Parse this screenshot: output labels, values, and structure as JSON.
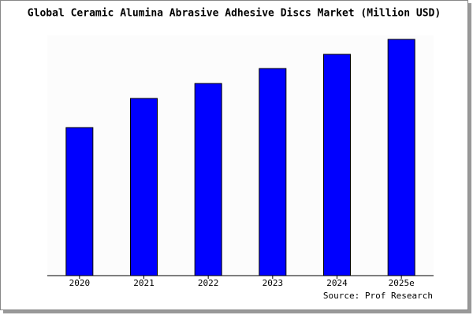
{
  "chart_data": {
    "type": "bar",
    "title": "Global Ceramic Alumina Abrasive Adhesive Discs Market (Million USD)",
    "categories": [
      "2020",
      "2021",
      "2022",
      "2023",
      "2024",
      "2025e"
    ],
    "values": [
      188,
      225,
      244,
      263,
      281,
      300
    ],
    "color": "#0000ff",
    "source": "Source: Prof Research"
  }
}
